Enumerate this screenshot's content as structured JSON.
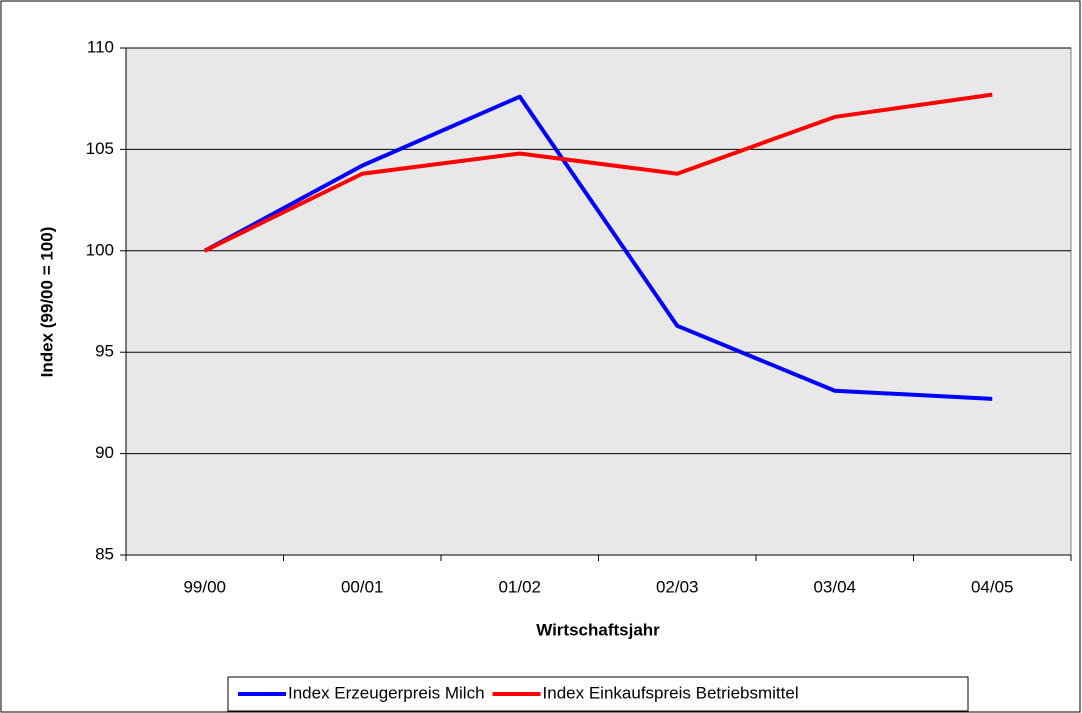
{
  "chart_data": {
    "type": "line",
    "x_label": "Wirtschaftsjahr",
    "y_label": "Index (99/00 = 100)",
    "categories": [
      "99/00",
      "00/01",
      "01/02",
      "02/03",
      "03/04",
      "04/05"
    ],
    "series": [
      {
        "name": "Index Erzeugerpreis Milch",
        "color": "#0000ff",
        "values": [
          100,
          104.2,
          107.6,
          96.3,
          93.1,
          92.7
        ]
      },
      {
        "name": "Index Einkaufspreis Betriebsmittel",
        "color": "#ff0000",
        "values": [
          100,
          103.8,
          104.8,
          103.8,
          106.6,
          107.7
        ]
      }
    ],
    "ylim": [
      85,
      110
    ],
    "yticks": [
      85,
      90,
      95,
      100,
      105,
      110
    ],
    "grid": true,
    "legend": "bottom"
  }
}
